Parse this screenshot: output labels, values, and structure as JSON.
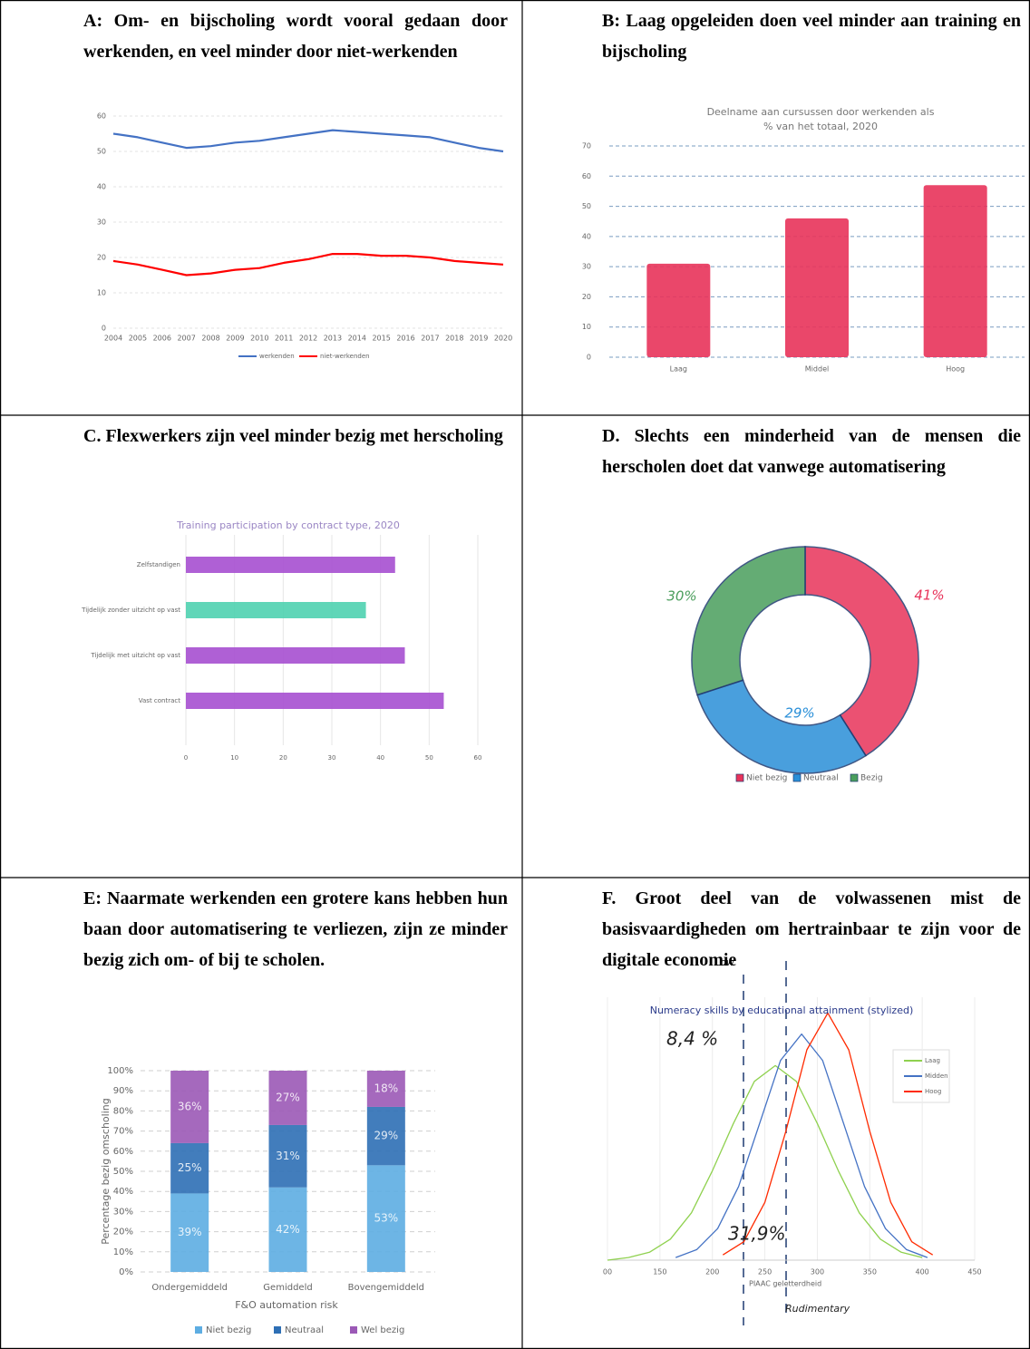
{
  "headings": [
    "A: Om- en bijscholing wordt vooral gedaan door werkenden, en veel minder door niet-werkenden",
    "B: Laag opgeleiden doen veel minder aan training en bijscholing",
    "C. Flexwerkers zijn veel minder bezig met herscholing",
    "D. Slechts een minderheid van de mensen die herscholen doet dat vanwege automatisering",
    "E: Naarmate werkenden een grotere kans hebben hun baan door automatisering te verliezen, zijn ze minder bezig zich om- of bij te scholen.",
    "F. Groot deel van de volwassenen mist de basisvaardigheden om hertrainbaar te zijn voor de digitale economie"
  ],
  "chart_data": [
    {
      "type": "line",
      "x": [
        2004,
        2005,
        2006,
        2007,
        2008,
        2009,
        2010,
        2011,
        2012,
        2013,
        2014,
        2015,
        2016,
        2017,
        2018,
        2019,
        2020
      ],
      "series": [
        {
          "name": "werkenden",
          "color": "#4472c4",
          "values": [
            55,
            54,
            52.5,
            51,
            51.5,
            52.5,
            53,
            54,
            55,
            56,
            55.5,
            55,
            54.5,
            54,
            52.5,
            51,
            50
          ]
        },
        {
          "name": "niet-werkenden",
          "color": "#ff0000",
          "values": [
            19,
            18,
            16.5,
            15,
            15.5,
            16.5,
            17,
            18.5,
            19.5,
            21,
            21,
            20.5,
            20.5,
            20,
            19,
            18.5,
            18
          ]
        }
      ],
      "ylim": [
        0,
        60
      ],
      "yticks": [
        0,
        10,
        20,
        30,
        40,
        50,
        60
      ],
      "grid": true,
      "legend": "bottom"
    },
    {
      "type": "bar",
      "title": "Deelname aan cursussen door werkenden als % van het totaal, 2020",
      "categories": [
        "Laag",
        "Middel",
        "Hoog"
      ],
      "values": [
        31,
        46,
        57
      ],
      "color": "#e8335a",
      "ylim": [
        0,
        70
      ],
      "yticks": [
        0,
        10,
        20,
        30,
        40,
        50,
        60,
        70
      ],
      "grid": true
    },
    {
      "type": "bar",
      "orientation": "horizontal",
      "title": "Training participation by contract type, 2020",
      "categories": [
        "Zelfstandigen",
        "Tijdelijk zonder uitzicht op vast",
        "Tijdelijk met uitzicht op vast",
        "Vast contract"
      ],
      "values": [
        43,
        37,
        45,
        53
      ],
      "colors": [
        "#a64fd0",
        "#4fd1b0",
        "#a64fd0",
        "#a64fd0"
      ],
      "xlim": [
        0,
        60
      ],
      "xticks": [
        0,
        10,
        20,
        30,
        40,
        50,
        60
      ],
      "grid": true
    },
    {
      "type": "pie",
      "donut": true,
      "categories": [
        "Niet bezig",
        "Neutraal",
        "Bezig"
      ],
      "values": [
        41,
        29,
        30
      ],
      "value_labels": [
        "41%",
        "29%",
        "30%"
      ],
      "colors": [
        "#e8335a",
        "#2a8fd8",
        "#4a9e5c"
      ],
      "legend": "bottom"
    },
    {
      "type": "bar",
      "stacked": true,
      "categories": [
        "Ondergemiddeld",
        "Gemiddeld",
        "Bovengemiddeld"
      ],
      "series": [
        {
          "name": "Niet bezig",
          "color": "#5dade2",
          "values": [
            39,
            42,
            53
          ],
          "value_labels": [
            "39%",
            "42%",
            "53%"
          ]
        },
        {
          "name": "Neutraal",
          "color": "#2e6fb5",
          "values": [
            25,
            31,
            29
          ],
          "value_labels": [
            "25%",
            "31%",
            "29%"
          ]
        },
        {
          "name": "Wel bezig",
          "color": "#9b59b6",
          "values": [
            36,
            27,
            18
          ],
          "value_labels": [
            "36%",
            "27%",
            "18%"
          ]
        }
      ],
      "ylim": [
        0,
        100
      ],
      "yticks": [
        {
          "value": 0,
          "label": "0%"
        },
        {
          "value": 10,
          "label": "10%"
        },
        {
          "value": 20,
          "label": "20%"
        },
        {
          "value": 30,
          "label": "30%"
        },
        {
          "value": 40,
          "label": "40%"
        },
        {
          "value": 50,
          "label": "50%"
        },
        {
          "value": 60,
          "label": "60%"
        },
        {
          "value": 70,
          "label": "70%"
        },
        {
          "value": 80,
          "label": "80%"
        },
        {
          "value": 90,
          "label": "90%"
        },
        {
          "value": 100,
          "label": "100%"
        }
      ],
      "ylabel": "Percentage bezig omscholing",
      "xlabel": "F&O automation risk",
      "grid": true,
      "legend": "bottom"
    },
    {
      "type": "line",
      "title": "Numeracy skills by educational attainment (stylized)",
      "xlabel": "PIAAC geletterdheid",
      "series": [
        {
          "name": "Laag",
          "color": "#8fd14f",
          "x": [
            100,
            120,
            140,
            160,
            180,
            200,
            220,
            240,
            260,
            280,
            300,
            320,
            340,
            360,
            380,
            400
          ],
          "values": [
            0,
            0.01,
            0.03,
            0.08,
            0.18,
            0.34,
            0.52,
            0.68,
            0.74,
            0.68,
            0.52,
            0.34,
            0.18,
            0.08,
            0.03,
            0.01
          ]
        },
        {
          "name": "Midden",
          "color": "#4472c4",
          "x": [
            165,
            185,
            205,
            225,
            245,
            265,
            285,
            305,
            325,
            345,
            365,
            385,
            405
          ],
          "values": [
            0.01,
            0.04,
            0.12,
            0.28,
            0.52,
            0.76,
            0.86,
            0.76,
            0.52,
            0.28,
            0.12,
            0.04,
            0.01
          ]
        },
        {
          "name": "Hoog",
          "color": "#ff2a00",
          "x": [
            210,
            230,
            250,
            270,
            290,
            310,
            330,
            350,
            370,
            390,
            410
          ],
          "values": [
            0.02,
            0.07,
            0.22,
            0.49,
            0.8,
            0.94,
            0.8,
            0.49,
            0.22,
            0.07,
            0.02
          ]
        }
      ],
      "xlim": [
        100,
        450
      ],
      "xticks": [
        {
          "value": 100,
          "label": "00"
        },
        150,
        200,
        250,
        300,
        350,
        400,
        450
      ],
      "ylim": [
        0,
        1
      ],
      "grid": true,
      "legend": "right",
      "annotations": [
        "Low",
        "Rudimentary",
        "8,4 %",
        "31,9%"
      ]
    }
  ]
}
